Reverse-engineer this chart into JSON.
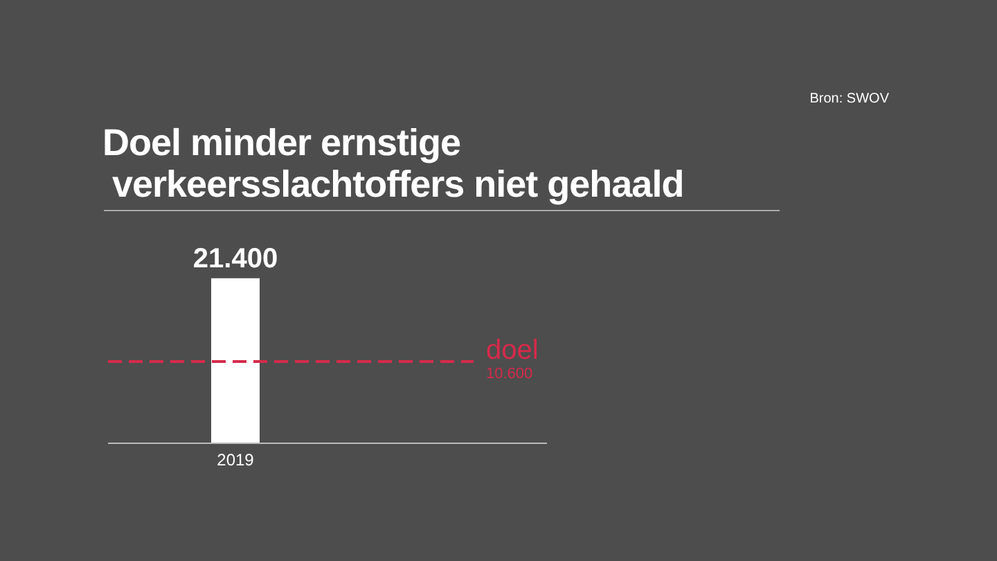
{
  "chart_data": {
    "type": "bar",
    "title": "Doel minder ernstige\nverkeersslachtoffers niet gehaald",
    "categories": [
      "2019"
    ],
    "values": [
      21400
    ],
    "value_labels": [
      "21.400"
    ],
    "color": "#ffffff",
    "ylim": [
      0,
      30000
    ],
    "ref_lines": [
      {
        "axis": "y",
        "value": 10600,
        "label": "doel",
        "color": "#d62a4a",
        "line_style": "dashed"
      }
    ],
    "annotations": [
      "Bron: SWOV",
      "10.600"
    ]
  }
}
